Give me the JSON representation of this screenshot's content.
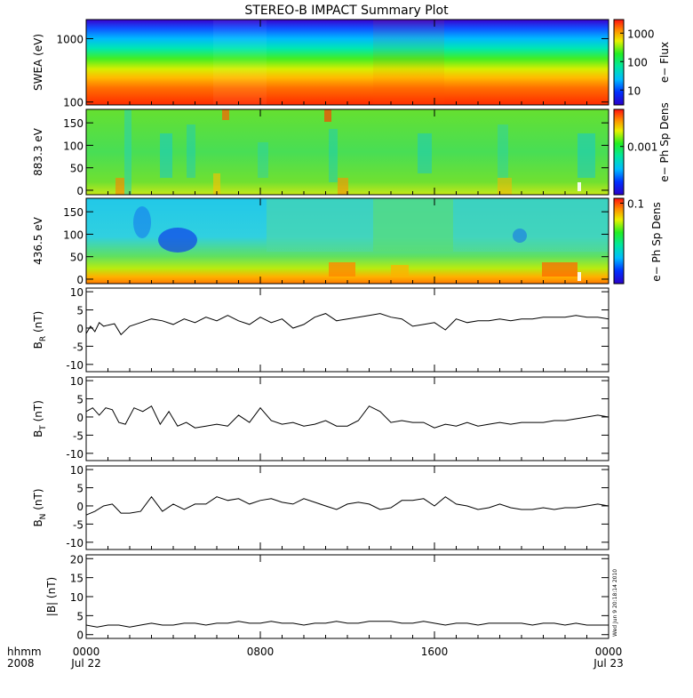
{
  "chart_data": {
    "type": "line",
    "title": "STEREO-B IMPACT Summary Plot",
    "timestamp": "Wed Jun  9 20:18:14 2010",
    "time_axis": {
      "label_left_top": "hhmm",
      "label_left_bottom": "2008",
      "ticks": [
        {
          "hour": 0,
          "hhmm": "0000",
          "date": "Jul 22"
        },
        {
          "hour": 8,
          "hhmm": "0800",
          "date": ""
        },
        {
          "hour": 16,
          "hhmm": "1600",
          "date": ""
        },
        {
          "hour": 24,
          "hhmm": "0000",
          "date": "Jul 23"
        }
      ],
      "range": [
        0,
        24
      ]
    },
    "spectrograms": [
      {
        "name": "swea",
        "ylabel": "SWEA (eV)",
        "scale": "log",
        "yrange": [
          90,
          2000
        ],
        "yticks": [
          {
            "v": 100,
            "label": "100"
          },
          {
            "v": 1000,
            "label": "1000"
          }
        ],
        "colorbar_label": "e− Flux",
        "colorbar_scale": "log",
        "colorbar_range": [
          3,
          3000
        ],
        "colorbar_ticks": [
          {
            "v": 10,
            "label": "10"
          },
          {
            "v": 100,
            "label": "100"
          },
          {
            "v": 1000,
            "label": "1000"
          }
        ]
      },
      {
        "name": "pad-883",
        "ylabel": "883.3 eV",
        "scale": "linear",
        "yrange": [
          -10,
          180
        ],
        "yticks": [
          {
            "v": 0,
            "label": "0"
          },
          {
            "v": 50,
            "label": "50"
          },
          {
            "v": 100,
            "label": "100"
          },
          {
            "v": 150,
            "label": "150"
          }
        ],
        "colorbar_label": "e− Ph Sp Dens",
        "colorbar_scale": "log",
        "colorbar_range": [
          5e-05,
          0.01
        ],
        "colorbar_ticks": [
          {
            "v": 0.001,
            "label": "0.001"
          }
        ]
      },
      {
        "name": "pad-436",
        "ylabel": "436.5 eV",
        "scale": "linear",
        "yrange": [
          -10,
          180
        ],
        "yticks": [
          {
            "v": 0,
            "label": "0"
          },
          {
            "v": 50,
            "label": "50"
          },
          {
            "v": 100,
            "label": "100"
          },
          {
            "v": 150,
            "label": "150"
          }
        ],
        "colorbar_label": "e− Ph Sp Dens",
        "colorbar_scale": "log",
        "colorbar_range": [
          0.005,
          0.12
        ],
        "colorbar_ticks": [
          {
            "v": 0.1,
            "label": "0.1"
          }
        ]
      }
    ],
    "line_panels": [
      {
        "name": "br",
        "ylabel_main": "B",
        "ylabel_sub": "R",
        "ylabel_unit": " (nT)",
        "yrange": [
          -12,
          11
        ],
        "yticks": [
          -10,
          -5,
          0,
          5,
          10
        ],
        "x": [
          0,
          0.2,
          0.4,
          0.6,
          0.8,
          1.0,
          1.3,
          1.6,
          2.0,
          2.5,
          3.0,
          3.5,
          4.0,
          4.5,
          5.0,
          5.5,
          6.0,
          6.5,
          7.0,
          7.5,
          8.0,
          8.5,
          9.0,
          9.5,
          10.0,
          10.5,
          11.0,
          11.5,
          12.0,
          12.5,
          13.0,
          13.5,
          14.0,
          14.5,
          15.0,
          15.5,
          16.0,
          16.5,
          17.0,
          17.5,
          18.0,
          18.5,
          19.0,
          19.5,
          20.0,
          20.5,
          21.0,
          21.5,
          22.0,
          22.5,
          23.0,
          23.5,
          24.0
        ],
        "y": [
          -1.5,
          0.5,
          -1.0,
          1.5,
          0.5,
          0.8,
          1.2,
          -1.8,
          0.5,
          1.5,
          2.5,
          2.0,
          1.0,
          2.5,
          1.5,
          3.0,
          2.0,
          3.5,
          2.0,
          1.0,
          3.0,
          1.5,
          2.5,
          0.0,
          1.0,
          3.0,
          4.0,
          2.0,
          2.5,
          3.0,
          3.5,
          4.0,
          3.0,
          2.5,
          0.5,
          1.0,
          1.5,
          -0.5,
          2.5,
          1.5,
          2.0,
          2.0,
          2.5,
          2.0,
          2.5,
          2.5,
          3.0,
          3.0,
          3.0,
          3.5,
          3.0,
          3.0,
          2.5
        ]
      },
      {
        "name": "bt",
        "ylabel_main": "B",
        "ylabel_sub": "T",
        "ylabel_unit": " (nT)",
        "yrange": [
          -12,
          11
        ],
        "yticks": [
          -10,
          -5,
          0,
          5,
          10
        ],
        "x": [
          0,
          0.3,
          0.6,
          0.9,
          1.2,
          1.5,
          1.8,
          2.2,
          2.6,
          3.0,
          3.4,
          3.8,
          4.2,
          4.6,
          5.0,
          5.5,
          6.0,
          6.5,
          7.0,
          7.5,
          8.0,
          8.5,
          9.0,
          9.5,
          10.0,
          10.5,
          11.0,
          11.5,
          12.0,
          12.5,
          13.0,
          13.5,
          14.0,
          14.5,
          15.0,
          15.5,
          16.0,
          16.5,
          17.0,
          17.5,
          18.0,
          18.5,
          19.0,
          19.5,
          20.0,
          20.5,
          21.0,
          21.5,
          22.0,
          22.5,
          23.0,
          23.5,
          24.0
        ],
        "y": [
          1.5,
          2.5,
          0.5,
          2.5,
          2.0,
          -1.5,
          -2.0,
          2.5,
          1.5,
          3.0,
          -2.0,
          1.5,
          -2.5,
          -1.5,
          -3.0,
          -2.5,
          -2.0,
          -2.5,
          0.5,
          -1.5,
          2.5,
          -1.0,
          -2.0,
          -1.5,
          -2.5,
          -2.0,
          -1.0,
          -2.5,
          -2.5,
          -1.0,
          3.0,
          1.5,
          -1.5,
          -1.0,
          -1.5,
          -1.5,
          -3.0,
          -2.0,
          -2.5,
          -1.5,
          -2.5,
          -2.0,
          -1.5,
          -2.0,
          -1.5,
          -1.5,
          -1.5,
          -1.0,
          -1.0,
          -0.5,
          0.0,
          0.5,
          0.0
        ]
      },
      {
        "name": "bn",
        "ylabel_main": "B",
        "ylabel_sub": "N",
        "ylabel_unit": " (nT)",
        "yrange": [
          -12,
          11
        ],
        "yticks": [
          -10,
          -5,
          0,
          5,
          10
        ],
        "x": [
          0,
          0.4,
          0.8,
          1.2,
          1.6,
          2.0,
          2.5,
          3.0,
          3.5,
          4.0,
          4.5,
          5.0,
          5.5,
          6.0,
          6.5,
          7.0,
          7.5,
          8.0,
          8.5,
          9.0,
          9.5,
          10.0,
          10.5,
          11.0,
          11.5,
          12.0,
          12.5,
          13.0,
          13.5,
          14.0,
          14.5,
          15.0,
          15.5,
          16.0,
          16.5,
          17.0,
          17.5,
          18.0,
          18.5,
          19.0,
          19.5,
          20.0,
          20.5,
          21.0,
          21.5,
          22.0,
          22.5,
          23.0,
          23.5,
          24.0
        ],
        "y": [
          -2.5,
          -1.5,
          0.0,
          0.5,
          -2.0,
          -2.0,
          -1.5,
          2.5,
          -1.5,
          0.5,
          -1.0,
          0.5,
          0.5,
          2.5,
          1.5,
          2.0,
          0.5,
          1.5,
          2.0,
          1.0,
          0.5,
          2.0,
          1.0,
          0.0,
          -1.0,
          0.5,
          1.0,
          0.5,
          -1.0,
          -0.5,
          1.5,
          1.5,
          2.0,
          0.0,
          2.5,
          0.5,
          0.0,
          -1.0,
          -0.5,
          0.5,
          -0.5,
          -1.0,
          -1.0,
          -0.5,
          -1.0,
          -0.5,
          -0.5,
          0.0,
          0.5,
          0.0
        ]
      },
      {
        "name": "bmag",
        "ylabel_main": "|B|",
        "ylabel_sub": "",
        "ylabel_unit": " (nT)",
        "yrange": [
          -1,
          21
        ],
        "yticks": [
          0,
          5,
          10,
          15,
          20
        ],
        "x": [
          0,
          0.5,
          1.0,
          1.5,
          2.0,
          2.5,
          3.0,
          3.5,
          4.0,
          4.5,
          5.0,
          5.5,
          6.0,
          6.5,
          7.0,
          7.5,
          8.0,
          8.5,
          9.0,
          9.5,
          10.0,
          10.5,
          11.0,
          11.5,
          12.0,
          12.5,
          13.0,
          13.5,
          14.0,
          14.5,
          15.0,
          15.5,
          16.0,
          16.5,
          17.0,
          17.5,
          18.0,
          18.5,
          19.0,
          19.5,
          20.0,
          20.5,
          21.0,
          21.5,
          22.0,
          22.5,
          23.0,
          23.5,
          24.0
        ],
        "y": [
          2.5,
          2.0,
          2.5,
          2.5,
          2.0,
          2.5,
          3.0,
          2.5,
          2.5,
          3.0,
          3.0,
          2.5,
          3.0,
          3.0,
          3.5,
          3.0,
          3.0,
          3.5,
          3.0,
          3.0,
          2.5,
          3.0,
          3.0,
          3.5,
          3.0,
          3.0,
          3.5,
          3.5,
          3.5,
          3.0,
          3.0,
          3.5,
          3.0,
          2.5,
          3.0,
          3.0,
          2.5,
          3.0,
          3.0,
          3.0,
          3.0,
          2.5,
          3.0,
          3.0,
          2.5,
          3.0,
          2.5,
          2.5,
          2.5
        ]
      }
    ]
  }
}
